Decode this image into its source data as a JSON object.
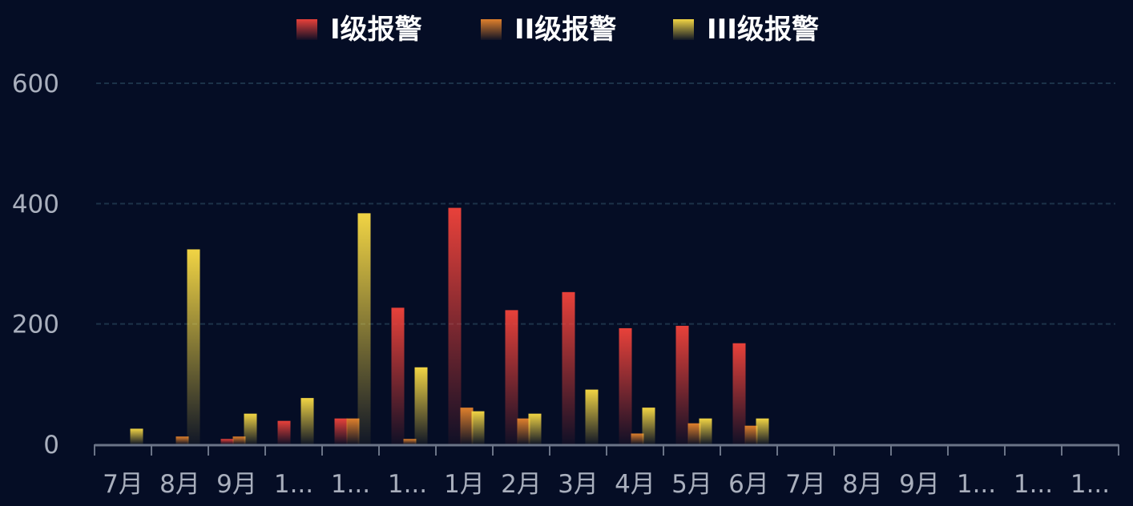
{
  "chart_data": {
    "type": "bar",
    "categories": [
      "7月",
      "8月",
      "9月",
      "1...",
      "1...",
      "1...",
      "1月",
      "2月",
      "3月",
      "4月",
      "5月",
      "6月",
      "7月",
      "8月",
      "9月",
      "1...",
      "1...",
      "1..."
    ],
    "series": [
      {
        "name": "I级报警",
        "color": "#e8413a",
        "values": [
          0,
          0,
          9,
          39,
          43,
          227,
          393,
          223,
          253,
          193,
          197,
          168,
          0,
          0,
          0,
          0,
          0,
          0
        ]
      },
      {
        "name": "II级报警",
        "color": "#e0802c",
        "values": [
          0,
          13,
          13,
          0,
          43,
          9,
          61,
          43,
          0,
          18,
          35,
          31,
          0,
          0,
          0,
          0,
          0,
          0
        ]
      },
      {
        "name": "III级报警",
        "color": "#f1d444",
        "values": [
          26,
          324,
          51,
          77,
          384,
          128,
          55,
          51,
          91,
          61,
          43,
          43,
          0,
          0,
          0,
          0,
          0,
          0
        ]
      }
    ],
    "yticks": [
      "0",
      "200",
      "400",
      "600"
    ],
    "ylim": [
      0,
      600
    ],
    "grid": true,
    "legend": "top-center",
    "background": "#050d25"
  }
}
